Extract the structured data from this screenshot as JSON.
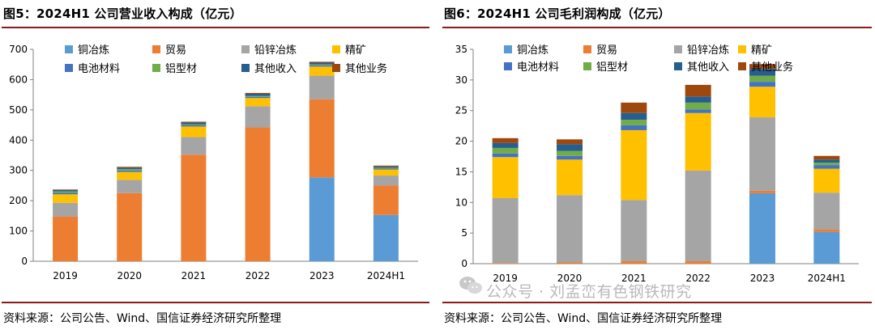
{
  "left_title": "图5：2024H1 公司营业收入构成（亿元）",
  "right_title": "图6：2024H1 公司毛利润构成（亿元）",
  "left_source": "资料来源：公司公告、Wind、国信证券经济研究所整理",
  "right_source": "资料来源：公司公告、Wind、国信证券经济研究所整理",
  "watermark": "公众号 · 刘孟峦有色钢铁研究",
  "colors": {
    "铜冶炼": "#5b9bd5",
    "贸易": "#ed7d31",
    "铅锌冶炼": "#a5a5a5",
    "精矿": "#ffc000",
    "电池材料": "#4472c4",
    "铝型材": "#70ad47",
    "其他收入": "#255e91",
    "其他业务": "#9e480e"
  },
  "chart_data": [
    {
      "type": "bar",
      "stacked": true,
      "title": "图5：2024H1 公司营业收入构成（亿元）",
      "categories": [
        "2019",
        "2020",
        "2021",
        "2022",
        "2023",
        "2024H1"
      ],
      "ylim": [
        0,
        700
      ],
      "yticks": [
        0,
        100,
        200,
        300,
        400,
        500,
        600,
        700
      ],
      "legend": [
        "铜冶炼",
        "贸易",
        "铅锌冶炼",
        "精矿",
        "电池材料",
        "铝型材",
        "其他收入",
        "其他业务"
      ],
      "series": [
        {
          "name": "铜冶炼",
          "values": [
            0,
            0,
            0,
            0,
            277,
            153
          ]
        },
        {
          "name": "贸易",
          "values": [
            148,
            225,
            352,
            442,
            258,
            97
          ]
        },
        {
          "name": "铅锌冶炼",
          "values": [
            45,
            44,
            58,
            70,
            78,
            33
          ]
        },
        {
          "name": "精矿",
          "values": [
            28,
            26,
            35,
            27,
            30,
            20
          ]
        },
        {
          "name": "电池材料",
          "values": [
            5,
            5,
            4,
            4,
            4,
            3
          ]
        },
        {
          "name": "铝型材",
          "values": [
            5,
            4,
            3,
            3,
            3,
            3
          ]
        },
        {
          "name": "其他收入",
          "values": [
            4,
            5,
            6,
            7,
            6,
            4
          ]
        },
        {
          "name": "其他业务",
          "values": [
            2,
            3,
            3,
            3,
            3,
            3
          ]
        }
      ]
    },
    {
      "type": "bar",
      "stacked": true,
      "title": "图6：2024H1 公司毛利润构成（亿元）",
      "categories": [
        "2019",
        "2020",
        "2021",
        "2022",
        "2023",
        "2024H1"
      ],
      "ylim": [
        0,
        35
      ],
      "yticks": [
        0,
        5,
        10,
        15,
        20,
        25,
        30,
        35
      ],
      "legend": [
        "铜冶炼",
        "贸易",
        "铅锌冶炼",
        "精矿",
        "电池材料",
        "铝型材",
        "其他收入",
        "其他业务"
      ],
      "series": [
        {
          "name": "铜冶炼",
          "values": [
            0,
            0,
            0,
            0,
            11.5,
            5.2
          ]
        },
        {
          "name": "贸易",
          "values": [
            0.1,
            0.2,
            0.4,
            0.4,
            0.4,
            0.4
          ]
        },
        {
          "name": "铅锌冶炼",
          "values": [
            10.6,
            11.0,
            10.0,
            14.8,
            12.0,
            6.0
          ]
        },
        {
          "name": "精矿",
          "values": [
            6.7,
            5.8,
            11.4,
            9.4,
            5.0,
            3.9
          ]
        },
        {
          "name": "电池材料",
          "values": [
            0.6,
            0.6,
            0.8,
            0.6,
            0.8,
            0.6
          ]
        },
        {
          "name": "铝型材",
          "values": [
            0.9,
            0.8,
            0.9,
            1.1,
            1.0,
            0.4
          ]
        },
        {
          "name": "其他收入",
          "values": [
            0.8,
            1.1,
            1.1,
            1.0,
            1.1,
            0.5
          ]
        },
        {
          "name": "其他业务",
          "values": [
            0.8,
            0.8,
            1.7,
            1.9,
            0.8,
            0.6
          ]
        }
      ]
    }
  ]
}
